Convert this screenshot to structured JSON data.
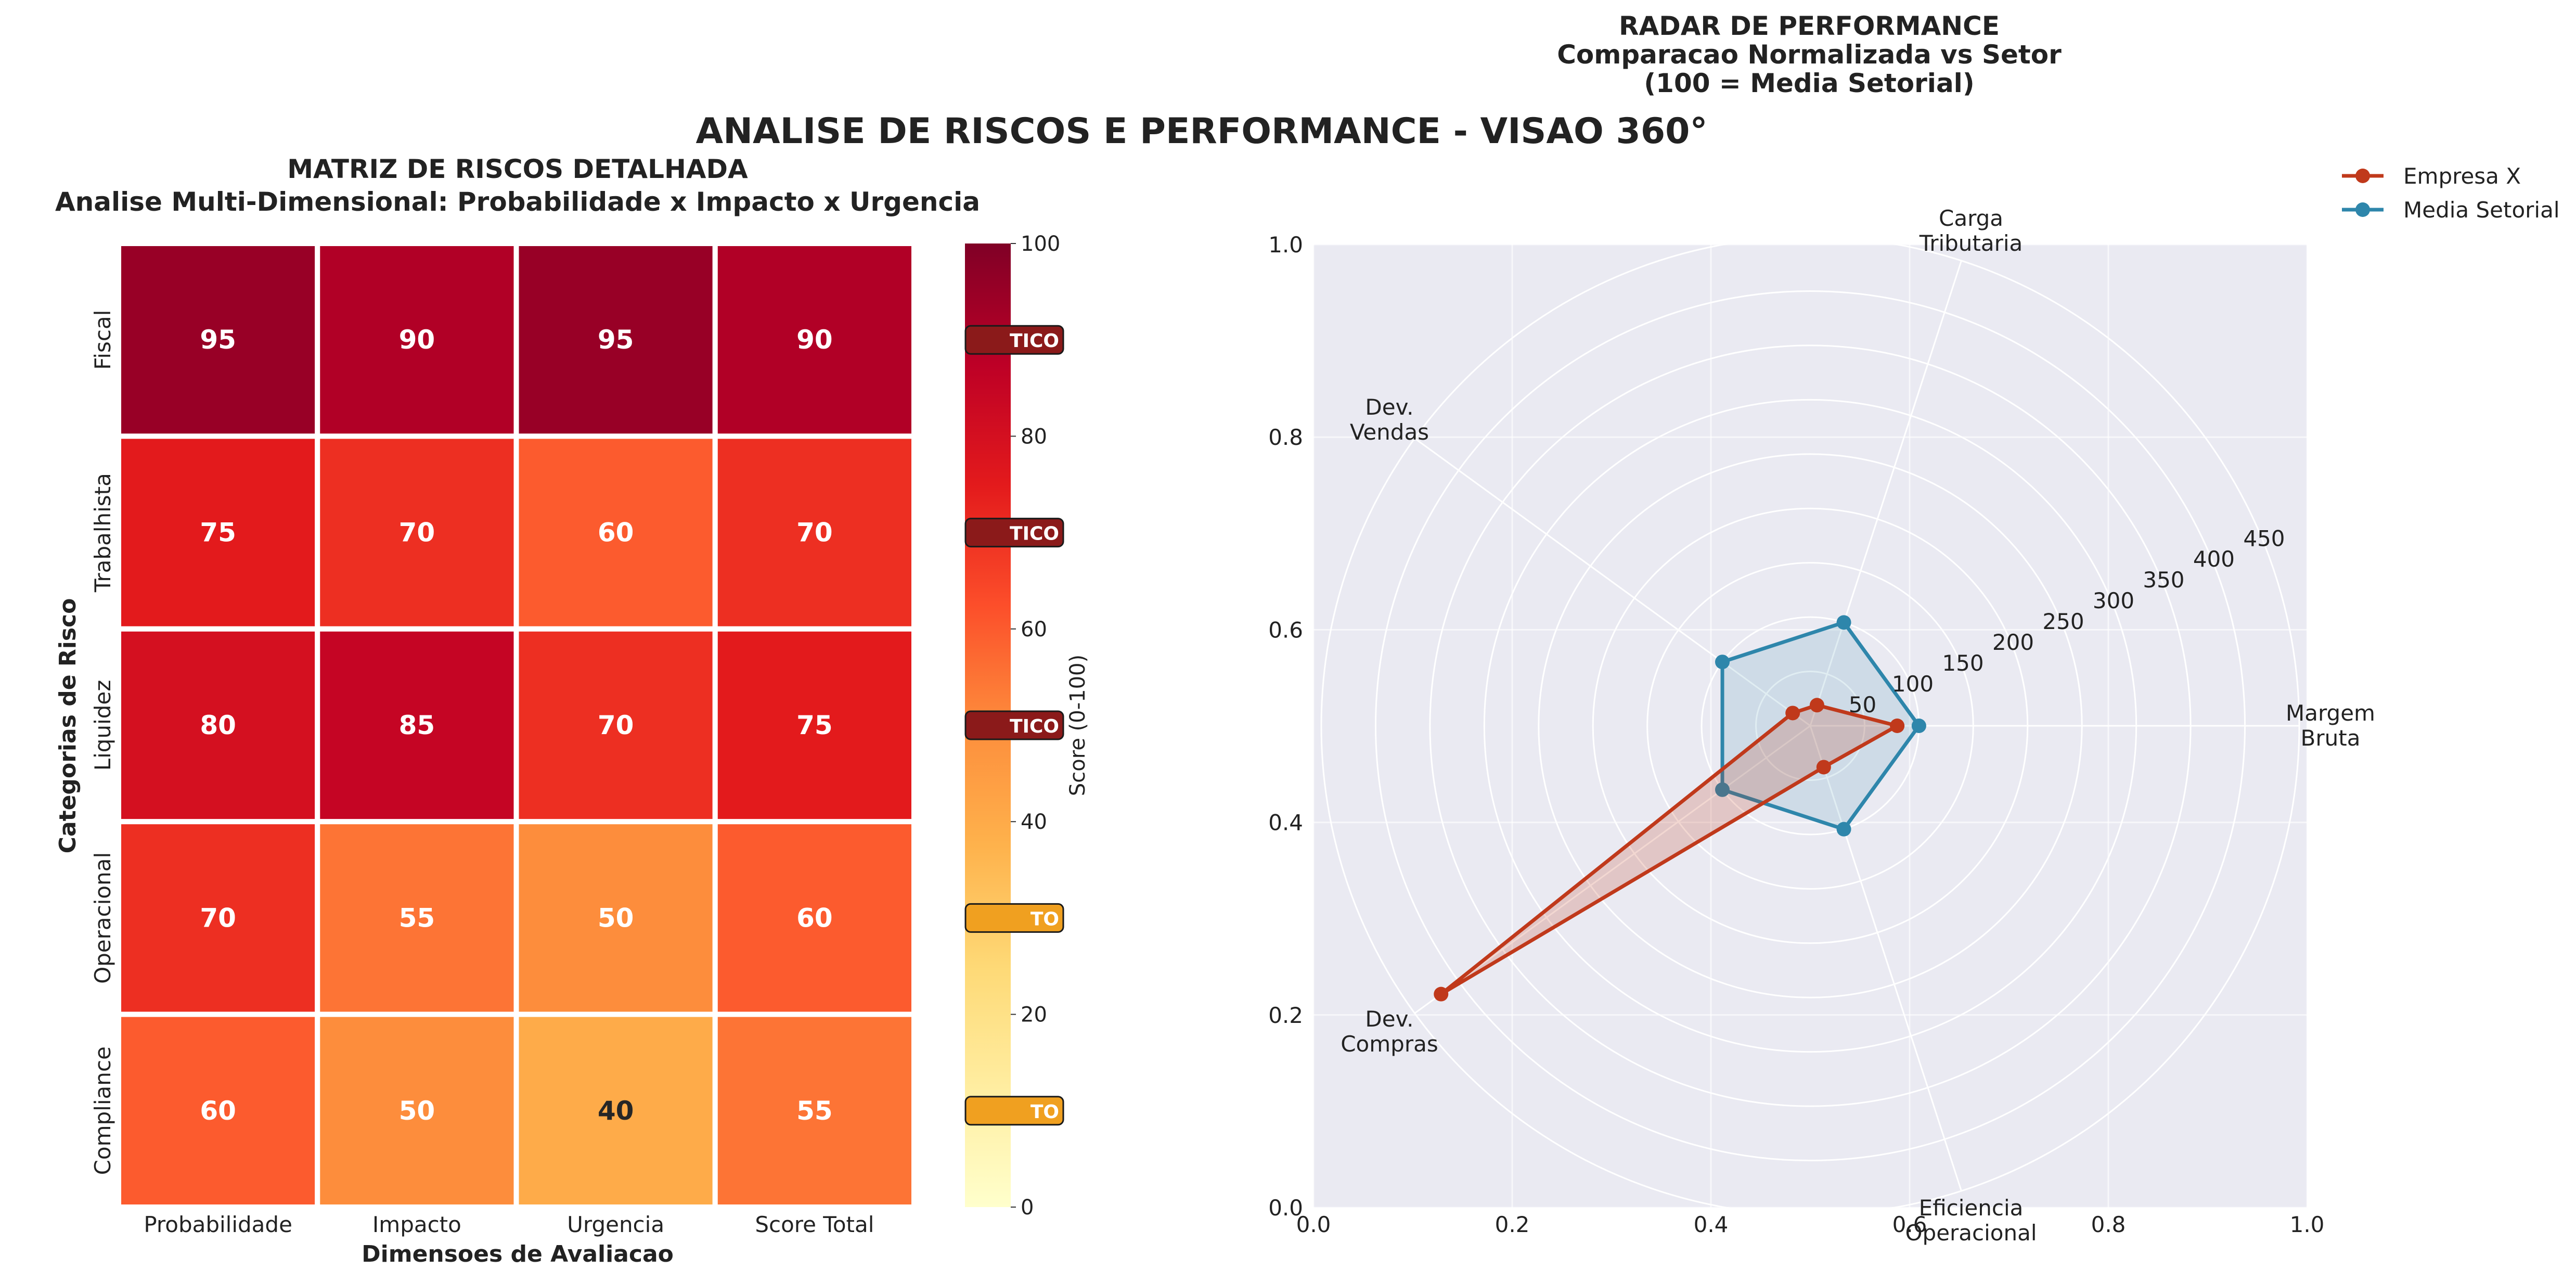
{
  "suptitle": "ANALISE DE RISCOS E PERFORMANCE - VISAO 360°",
  "chart_data": [
    {
      "type": "heatmap",
      "title": "MATRIZ DE RISCOS DETALHADA",
      "subtitle": "Analise Multi-Dimensional: Probabilidade x Impacto x Urgencia",
      "xlabel": "Dimensoes de Avaliacao",
      "ylabel": "Categorias de Risco",
      "columns": [
        "Probabilidade",
        "Impacto",
        "Urgencia",
        "Score Total"
      ],
      "rows": [
        "Fiscal",
        "Trabalhista",
        "Liquidez",
        "Operacional",
        "Compliance"
      ],
      "values": [
        [
          95,
          90,
          95,
          90
        ],
        [
          75,
          70,
          60,
          70
        ],
        [
          80,
          85,
          70,
          75
        ],
        [
          70,
          55,
          50,
          60
        ],
        [
          60,
          50,
          40,
          55
        ]
      ],
      "colorbar": {
        "label": "Score (0-100)",
        "range": [
          0,
          100
        ],
        "ticks": [
          "0",
          "20",
          "40",
          "60",
          "80",
          "100"
        ],
        "colormap": "YlOrRd"
      },
      "risk_badges": [
        "TICO",
        "TICO",
        "TICO",
        "TO",
        "TO"
      ],
      "badge_colors": [
        "#8b1a1a",
        "#8b1a1a",
        "#8b1a1a",
        "#f0a020",
        "#f0a020"
      ]
    },
    {
      "type": "radar",
      "title": "RADAR DE PERFORMANCE",
      "subtitle_lines": [
        "Comparacao Normalizada vs Setor",
        "(100 = Media Setorial)"
      ],
      "axes": [
        {
          "label": [
            "Margem",
            "Bruta"
          ]
        },
        {
          "label": [
            "Carga",
            "Tributaria"
          ]
        },
        {
          "label": [
            "Dev.",
            "Vendas"
          ]
        },
        {
          "label": [
            "Dev.",
            "Compras"
          ]
        },
        {
          "label": [
            "Eficiencia",
            "Operacional"
          ]
        }
      ],
      "radial_ticks": [
        "50",
        "100",
        "150",
        "200",
        "250",
        "300",
        "350",
        "400",
        "450"
      ],
      "radial_max": 450,
      "series": [
        {
          "name": "Empresa X",
          "values": [
            80,
            20,
            20,
            420,
            40
          ],
          "color": "#c0391b"
        },
        {
          "name": "Media Setorial",
          "values": [
            100,
            100,
            100,
            100,
            100
          ],
          "color": "#2e86ab"
        }
      ],
      "cartesian_ticks": [
        "0.0",
        "0.2",
        "0.4",
        "0.6",
        "0.8",
        "1.0"
      ],
      "legend_position": "top-right"
    }
  ]
}
